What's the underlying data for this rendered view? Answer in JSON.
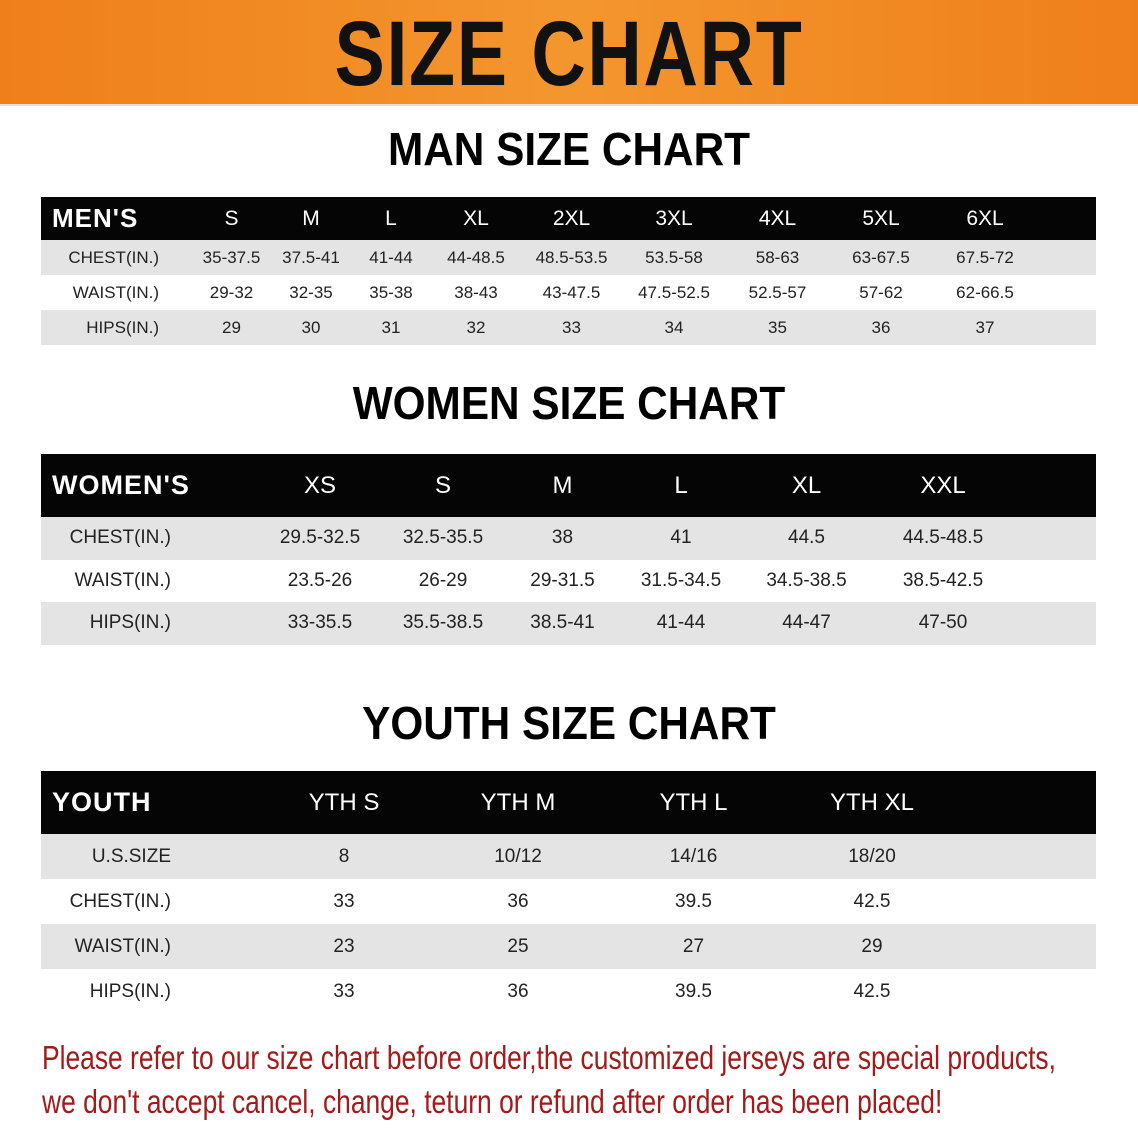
{
  "banner": {
    "title": "SIZE CHART",
    "color": "#ef7f1a"
  },
  "men": {
    "title": "MAN SIZE CHART",
    "header": [
      "MEN'S",
      "S",
      "M",
      "L",
      "XL",
      "2XL",
      "3XL",
      "4XL",
      "5XL",
      "6XL"
    ],
    "rows": [
      [
        "CHEST(IN.)",
        "35-37.5",
        "37.5-41",
        "41-44",
        "44-48.5",
        "48.5-53.5",
        "53.5-58",
        "58-63",
        "63-67.5",
        "67.5-72"
      ],
      [
        "WAIST(IN.)",
        "29-32",
        "32-35",
        "35-38",
        "38-43",
        "43-47.5",
        "47.5-52.5",
        "52.5-57",
        "57-62",
        "62-66.5"
      ],
      [
        "HIPS(IN.)",
        "29",
        "30",
        "31",
        "32",
        "33",
        "34",
        "35",
        "36",
        "37"
      ]
    ]
  },
  "women": {
    "title": "WOMEN SIZE CHART",
    "header": [
      "WOMEN'S",
      "XS",
      "S",
      "M",
      "L",
      "XL",
      "XXL"
    ],
    "rows": [
      [
        "CHEST(IN.)",
        "29.5-32.5",
        "32.5-35.5",
        "38",
        "41",
        "44.5",
        "44.5-48.5"
      ],
      [
        "WAIST(IN.)",
        "23.5-26",
        "26-29",
        "29-31.5",
        "31.5-34.5",
        "34.5-38.5",
        "38.5-42.5"
      ],
      [
        "HIPS(IN.)",
        "33-35.5",
        "35.5-38.5",
        "38.5-41",
        "41-44",
        "44-47",
        "47-50"
      ]
    ]
  },
  "youth": {
    "title": "YOUTH SIZE CHART",
    "header": [
      "YOUTH",
      "YTH S",
      "YTH M",
      "YTH L",
      "YTH XL"
    ],
    "rows": [
      [
        "U.S.SIZE",
        "8",
        "10/12",
        "14/16",
        "18/20"
      ],
      [
        "CHEST(IN.)",
        "33",
        "36",
        "39.5",
        "42.5"
      ],
      [
        "WAIST(IN.)",
        "23",
        "25",
        "27",
        "29"
      ],
      [
        "HIPS(IN.)",
        "33",
        "36",
        "39.5",
        "42.5"
      ]
    ]
  },
  "note": {
    "line1": "Please refer to our size chart before order,the customized jerseys are special products,",
    "line2": "we don't accept cancel, change, teturn or refund after order has been placed!",
    "color": "#a31a1a"
  }
}
